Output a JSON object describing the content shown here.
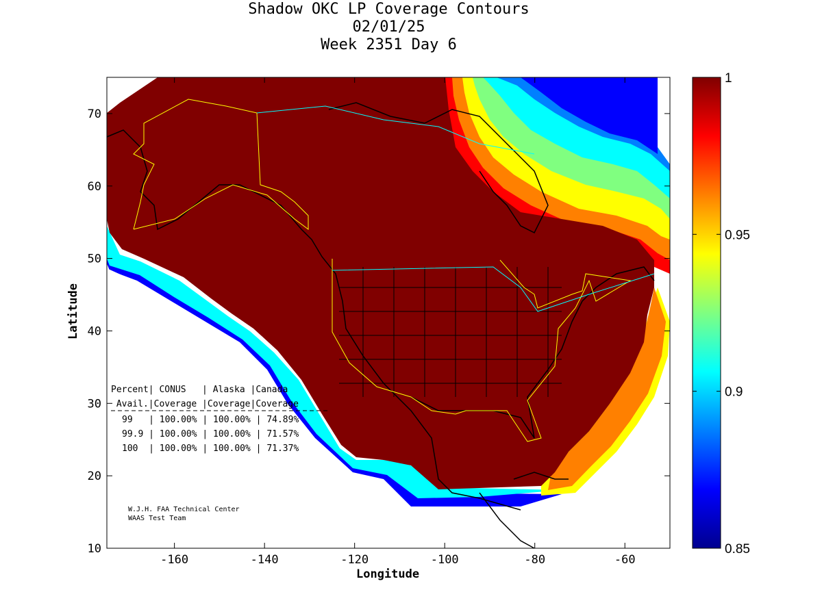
{
  "chart_data": {
    "type": "heatmap",
    "title": [
      "Shadow OKC LP Coverage Contours",
      "02/01/25",
      "Week 2351 Day 6"
    ],
    "xlabel": "Longitude",
    "ylabel": "Latitude",
    "xlim": [
      -175,
      -50
    ],
    "ylim": [
      10,
      75
    ],
    "xticks": [
      -160,
      -140,
      -120,
      -100,
      -80,
      -60
    ],
    "yticks": [
      10,
      20,
      30,
      40,
      50,
      60,
      70
    ],
    "colorbar": {
      "range": [
        0.85,
        1
      ],
      "ticks": [
        0.85,
        0.9,
        0.95,
        1
      ],
      "tick_labels": [
        "0.85",
        "0.9",
        "0.95",
        "1"
      ],
      "colormap": "jet"
    },
    "table": {
      "header1": [
        "Percent",
        "CONUS",
        "Alaska",
        "Canada"
      ],
      "header2": [
        "Avail.",
        "Coverage",
        "Coverage",
        "Coverage"
      ],
      "rows": [
        [
          "99",
          "100.00%",
          "100.00%",
          "74.89%"
        ],
        [
          "99.9",
          "100.00%",
          "100.00%",
          "71.57%"
        ],
        [
          "100",
          "100.00%",
          "100.00%",
          "71.37%"
        ]
      ]
    },
    "credit": [
      "W.J.H. FAA Technical Center",
      "WAAS Test Team"
    ]
  },
  "colors": {
    "coverage_full": "#800000",
    "colormap_stops": [
      "#00008f",
      "#0000ff",
      "#0080ff",
      "#00ffff",
      "#80ff80",
      "#ffff00",
      "#ff8000",
      "#ff0000",
      "#800000"
    ],
    "region_outline": "#ffff00",
    "canada_outline": "#00ffff",
    "coastline": "#000000"
  }
}
